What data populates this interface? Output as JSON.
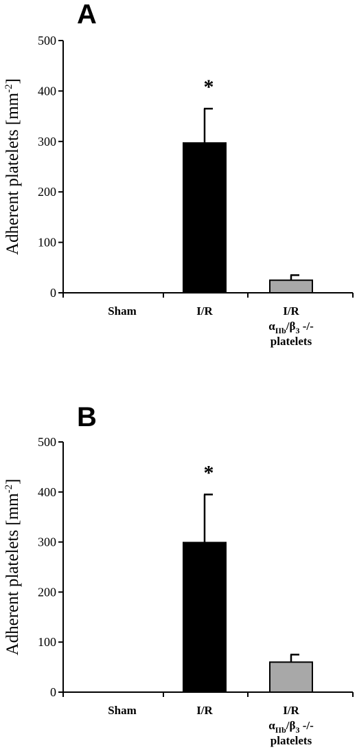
{
  "chart_data": [
    {
      "type": "bar",
      "panel_label": "A",
      "categories": [
        {
          "line1": "Sham",
          "line2": "",
          "line3": ""
        },
        {
          "line1": "I/R",
          "line2": "",
          "line3": ""
        },
        {
          "line1": "I/R",
          "line2": "αIIb/β3 -/-",
          "line3": "platelets"
        }
      ],
      "values": [
        0,
        297,
        25
      ],
      "errors": [
        0,
        68,
        10
      ],
      "bar_colors": [
        "#000000",
        "#000000",
        "#a8a8a8"
      ],
      "significance": [
        "",
        "*",
        ""
      ],
      "ylabel": "Adherent platelets [mm-2]",
      "ylabel_parts": {
        "main": "Adherent platelets [mm",
        "sup": "-2",
        "end": "]"
      },
      "ylim": [
        0,
        500
      ],
      "yticks": [
        0,
        100,
        200,
        300,
        400,
        500
      ],
      "grid": false
    },
    {
      "type": "bar",
      "panel_label": "B",
      "categories": [
        {
          "line1": "Sham",
          "line2": "",
          "line3": ""
        },
        {
          "line1": "I/R",
          "line2": "",
          "line3": ""
        },
        {
          "line1": "I/R",
          "line2": "αIIb/β3 -/-",
          "line3": "platelets"
        }
      ],
      "values": [
        0,
        299,
        60
      ],
      "errors": [
        0,
        96,
        15
      ],
      "bar_colors": [
        "#000000",
        "#000000",
        "#a8a8a8"
      ],
      "significance": [
        "",
        "*",
        ""
      ],
      "ylabel": "Adherent platelets [mm-2]",
      "ylabel_parts": {
        "main": "Adherent platelets [mm",
        "sup": "-2",
        "end": "]"
      },
      "ylim": [
        0,
        500
      ],
      "yticks": [
        0,
        100,
        200,
        300,
        400,
        500
      ],
      "grid": false
    }
  ]
}
